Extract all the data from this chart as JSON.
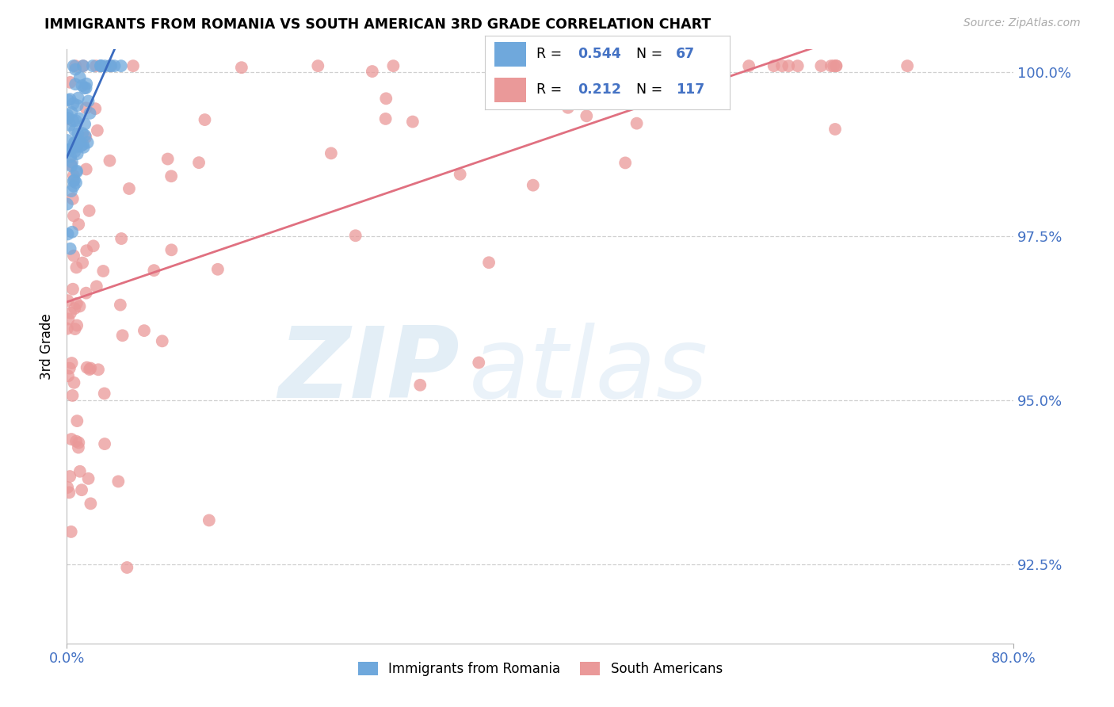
{
  "title": "IMMIGRANTS FROM ROMANIA VS SOUTH AMERICAN 3RD GRADE CORRELATION CHART",
  "source": "Source: ZipAtlas.com",
  "ylabel": "3rd Grade",
  "romania_color": "#6fa8dc",
  "south_color": "#ea9999",
  "romania_line_color": "#3a6bbf",
  "south_line_color": "#e07080",
  "background_color": "#ffffff",
  "grid_color": "#d0d0d0",
  "text_color_blue": "#4472c4",
  "ytick_vals": [
    0.925,
    0.95,
    0.975,
    1.0
  ],
  "ytick_labels": [
    "92.5%",
    "95.0%",
    "97.5%",
    "100.0%"
  ],
  "xlim": [
    0.0,
    0.8
  ],
  "ylim": [
    0.913,
    1.0035
  ]
}
